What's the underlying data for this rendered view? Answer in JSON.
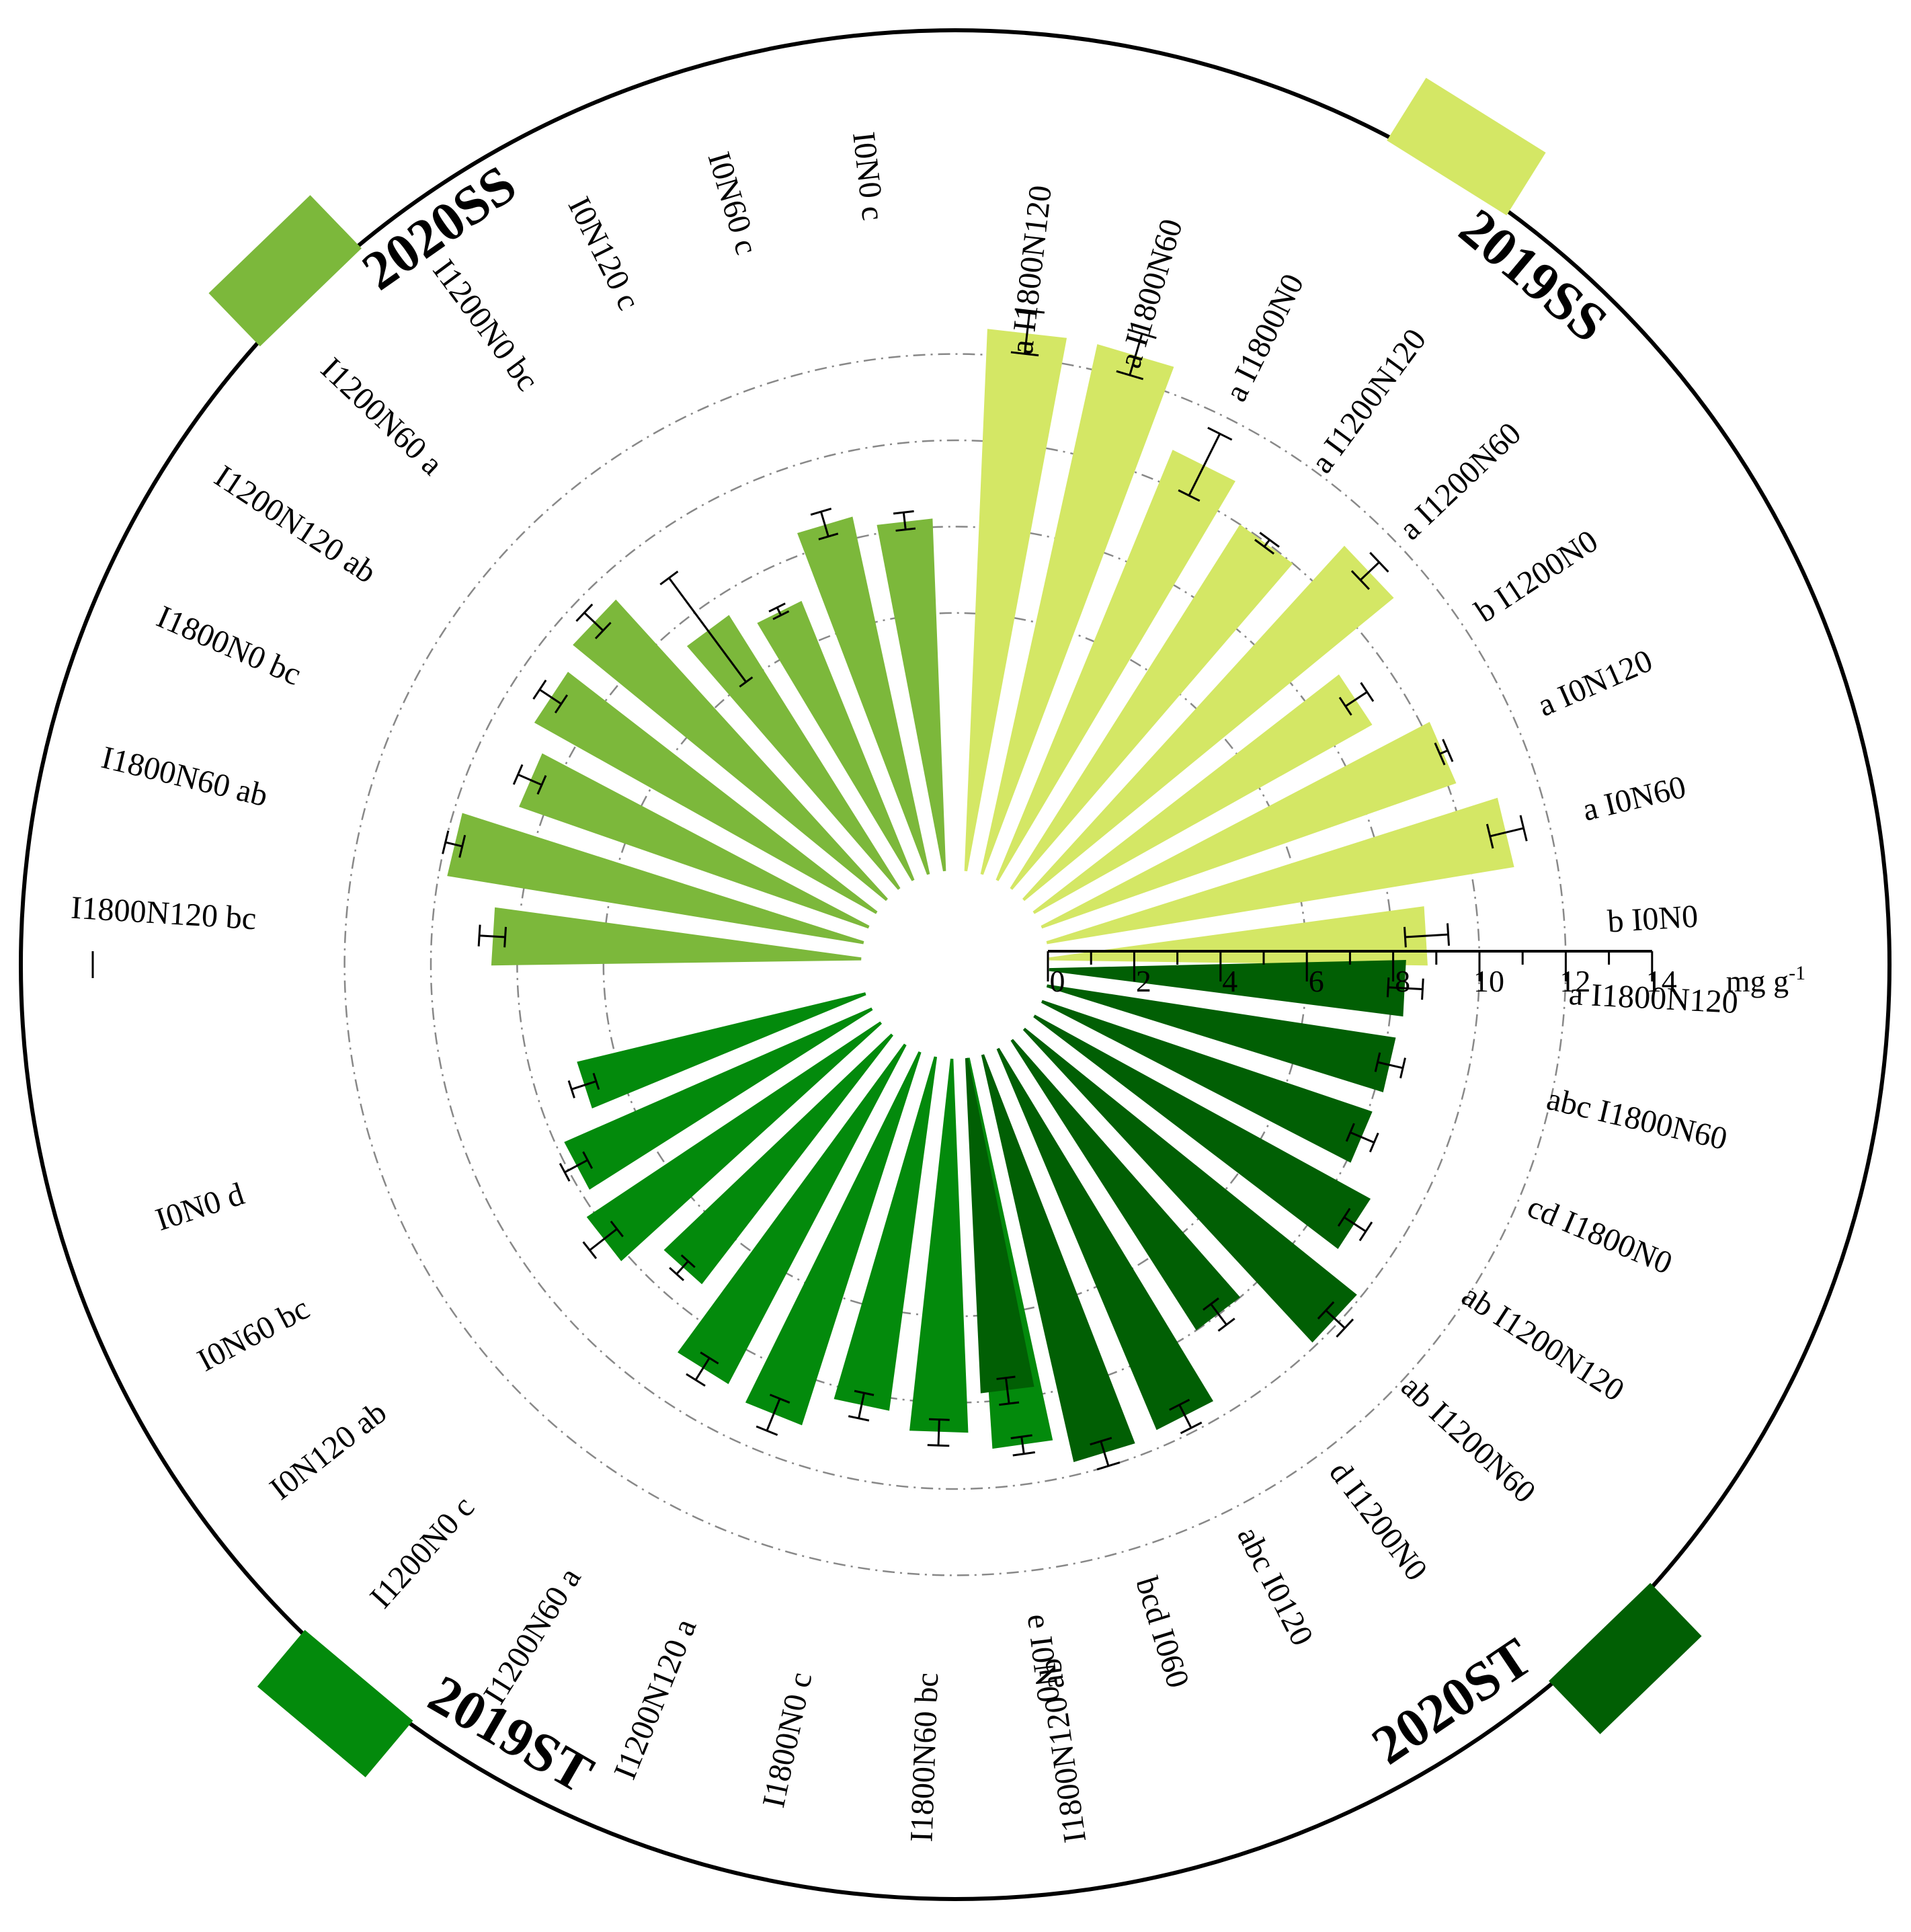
{
  "chart_data": {
    "type": "bar",
    "layout": "radial",
    "unit": "mg g-1",
    "unit_label_parts": {
      "base": "mg g",
      "sup": "-1"
    },
    "rlim": [
      0,
      14
    ],
    "r_ticks": [
      0,
      2,
      4,
      6,
      8,
      10,
      12,
      14
    ],
    "r_tick_labels": [
      "0",
      "2",
      "4",
      "6",
      "8",
      "10",
      "12",
      "14"
    ],
    "grid": "dash-dot circles",
    "groups": [
      {
        "name": "2019SS",
        "color": "#d4e765",
        "items": [
          {
            "label": "I0N0",
            "sig": "b",
            "value": 8.8,
            "err": 0.5
          },
          {
            "label": "I0N60",
            "sig": "a",
            "value": 11.0,
            "err": 0.4
          },
          {
            "label": "I0N120",
            "sig": "a",
            "value": 10.2,
            "err": 0.1
          },
          {
            "label": "I1200N0",
            "sig": "b",
            "value": 9.0,
            "err": 0.3
          },
          {
            "label": "I1200N60",
            "sig": "a",
            "value": 11.1,
            "err": 0.3
          },
          {
            "label": "I1200N120",
            "sig": "a",
            "value": 10.0,
            "err": 0.1
          },
          {
            "label": "I1800N0",
            "sig": "a",
            "value": 10.8,
            "err": 0.8
          },
          {
            "label": "I1800N60",
            "sig": "a",
            "value": 12.6,
            "err": 0.5
          },
          {
            "label": "I1800N120",
            "sig": "a",
            "value": 12.6,
            "err": 0.5
          }
        ]
      },
      {
        "name": "2020SS",
        "color": "#7cb83b",
        "items": [
          {
            "label": "I0N0",
            "sig": "c",
            "value": 8.2,
            "err": 0.2
          },
          {
            "label": "I0N60",
            "sig": "c",
            "value": 8.5,
            "err": 0.3
          },
          {
            "label": "I0N120",
            "sig": "c",
            "value": 7.0,
            "err": 0.1
          },
          {
            "label": "I1200N0",
            "sig": "bc",
            "value": 7.5,
            "err": 1.5
          },
          {
            "label": "I1200N60",
            "sig": "a",
            "value": 9.4,
            "err": 0.3
          },
          {
            "label": "I1200N120",
            "sig": "ab",
            "value": 9.1,
            "err": 0.3
          },
          {
            "label": "I1800N0",
            "sig": "bc",
            "value": 8.6,
            "err": 0.3
          },
          {
            "label": "I1800N60",
            "sig": "ab",
            "value": 9.8,
            "err": 0.2
          },
          {
            "label": "I1800N120",
            "sig": "bc",
            "value": 8.6,
            "err": 0.3
          }
        ]
      },
      {
        "name": "2019ST",
        "color": "#038a0c",
        "items": [
          {
            "label": "I0N0",
            "sig": "d",
            "value": 6.9,
            "err": 0.3
          },
          {
            "label": "I0N60",
            "sig": "bc",
            "value": 7.8,
            "err": 0.3
          },
          {
            "label": "I0N120",
            "sig": "ab",
            "value": 8.2,
            "err": 0.4
          },
          {
            "label": "I1200N0",
            "sig": "c",
            "value": 7.3,
            "err": 0.2
          },
          {
            "label": "I1200N60",
            "sig": "a",
            "value": 8.9,
            "err": 0.3
          },
          {
            "label": "I1200N120",
            "sig": "a",
            "value": 9.1,
            "err": 0.4
          },
          {
            "label": "I1800N0",
            "sig": "c",
            "value": 8.3,
            "err": 0.3
          },
          {
            "label": "I1800N60",
            "sig": "bc",
            "value": 8.7,
            "err": 0.3
          },
          {
            "label": "I1800N120",
            "sig": "ab",
            "value": 9.1,
            "err": 0.2
          }
        ]
      },
      {
        "name": "2020ST",
        "color": "#015f04",
        "items": [
          {
            "label": "I0N0",
            "sig": "e",
            "value": 7.8,
            "err": 0.3
          },
          {
            "label": "I060",
            "sig": "bcd",
            "value": 9.7,
            "err": 0.3
          },
          {
            "label": "I0120",
            "sig": "abc",
            "value": 9.6,
            "err": 0.3
          },
          {
            "label": "I1200N0",
            "sig": "d",
            "value": 8.0,
            "err": 0.3
          },
          {
            "label": "I1200N60",
            "sig": "ab",
            "value": 9.9,
            "err": 0.3
          },
          {
            "label": "I1200N120",
            "sig": "ab",
            "value": 8.9,
            "err": 0.3
          },
          {
            "label": "I1800N0",
            "sig": "cd",
            "value": 8.1,
            "err": 0.3
          },
          {
            "label": "I1800N60",
            "sig": "abc",
            "value": 8.2,
            "err": 0.3
          },
          {
            "label": "I1800N120",
            "sig": "a",
            "value": 8.3,
            "err": 0.4
          }
        ]
      }
    ]
  }
}
